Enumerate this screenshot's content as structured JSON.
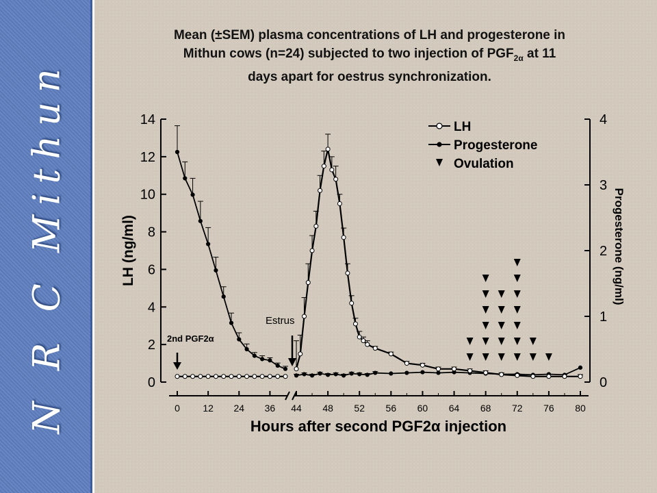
{
  "sidebar": {
    "text": "N R C Mithun"
  },
  "slide": {
    "title_line1": "Mean (±SEM) plasma concentrations of LH and progesterone in",
    "title_line2_pre": "Mithun cows (n=24) subjected to two injection of PGF",
    "title_line2_sub": "2α",
    "title_line2_post": " at 11",
    "title_line3": "days apart for oestrus synchronization."
  },
  "chart_data": {
    "type": "line",
    "xlabel": "Hours after second PGF2α injection",
    "ylabel_left": "LH (ng/ml)",
    "ylabel_right": "Progesterone (ng/ml)",
    "ylim_left": [
      0,
      14
    ],
    "ylim_right": [
      0,
      4
    ],
    "left_ticks": [
      0,
      2,
      4,
      6,
      8,
      10,
      12,
      14
    ],
    "right_ticks": [
      0,
      1,
      2,
      3,
      4
    ],
    "x_ticks": [
      "0",
      "12",
      "24",
      "36",
      "44",
      "48",
      "52",
      "56",
      "60",
      "64",
      "68",
      "72",
      "76",
      "80"
    ],
    "legend": {
      "position": "top-right",
      "entries": [
        {
          "label": "LH",
          "marker": "open-circle"
        },
        {
          "label": "Progesterone",
          "marker": "filled-circle"
        },
        {
          "label": "Ovulation",
          "marker": "filled-triangle-down"
        }
      ]
    },
    "annotations": [
      {
        "text": "2nd PGF2α",
        "x": 0
      },
      {
        "text": "Estrus",
        "x": 44
      }
    ],
    "series": [
      {
        "name": "Progesterone",
        "axis": "right",
        "x": [
          0,
          3,
          6,
          9,
          12,
          15,
          18,
          21,
          24,
          27,
          30,
          33,
          36,
          39,
          42
        ],
        "y": [
          3.5,
          3.1,
          2.85,
          2.45,
          2.1,
          1.7,
          1.3,
          0.9,
          0.65,
          0.5,
          0.4,
          0.35,
          0.33,
          0.25,
          0.2
        ],
        "err": [
          0.4,
          0.25,
          0.25,
          0.3,
          0.25,
          0.2,
          0.15,
          0.15,
          0.1,
          0.08,
          0.05,
          0.05,
          0.04,
          0.04,
          0.04
        ]
      },
      {
        "name": "Progesterone",
        "axis": "right",
        "x": [
          44,
          45,
          46,
          47,
          48,
          49,
          50,
          51,
          52,
          53,
          54,
          56,
          58,
          60,
          62,
          64,
          66,
          68,
          70,
          72,
          74,
          76,
          78,
          80
        ],
        "y": [
          0.1,
          0.12,
          0.1,
          0.13,
          0.11,
          0.12,
          0.1,
          0.13,
          0.12,
          0.11,
          0.14,
          0.13,
          0.14,
          0.15,
          0.14,
          0.15,
          0.14,
          0.13,
          0.12,
          0.12,
          0.11,
          0.12,
          0.11,
          0.22
        ],
        "err": [
          0.02,
          0.02,
          0.02,
          0.02,
          0.02,
          0.02,
          0.02,
          0.02,
          0.02,
          0.02,
          0.02,
          0,
          0,
          0,
          0,
          0,
          0,
          0,
          0,
          0,
          0,
          0,
          0,
          0
        ]
      },
      {
        "name": "LH",
        "axis": "left",
        "x": [
          0,
          3,
          6,
          9,
          12,
          15,
          18,
          21,
          24,
          27,
          30,
          33,
          36,
          39,
          42
        ],
        "y": [
          0.3,
          0.3,
          0.3,
          0.3,
          0.3,
          0.3,
          0.3,
          0.3,
          0.3,
          0.3,
          0.3,
          0.3,
          0.3,
          0.3,
          0.3
        ],
        "err": []
      },
      {
        "name": "LH",
        "axis": "left",
        "x": [
          44,
          44.5,
          45,
          45.5,
          46,
          46.5,
          47,
          47.5,
          48,
          48.5,
          49,
          49.5,
          50,
          50.5,
          51,
          51.5,
          52,
          52.5,
          53,
          54,
          56,
          58,
          60,
          62,
          64,
          66,
          68,
          70,
          72,
          74,
          76,
          78,
          80
        ],
        "y": [
          0.7,
          1.5,
          3.5,
          5.3,
          7.0,
          8.3,
          10.2,
          11.5,
          12.4,
          11.3,
          10.8,
          9.5,
          7.7,
          5.8,
          4.2,
          3.1,
          2.4,
          2.2,
          2.0,
          1.8,
          1.5,
          1.0,
          0.9,
          0.7,
          0.7,
          0.6,
          0.5,
          0.4,
          0.35,
          0.3,
          0.3,
          0.3,
          0.3
        ],
        "err": [
          1.5,
          1.0,
          1.0,
          1.0,
          0.8,
          0.8,
          0.8,
          0.8,
          0.8,
          0.7,
          0.7,
          0.5,
          0.5,
          0.5,
          0.4,
          0.3,
          0.3,
          0.2,
          0.2,
          0.1,
          0.1,
          0.1,
          0.1,
          0.1,
          0.1,
          0.1,
          0.1,
          0.1,
          0.1,
          0.1,
          0.1,
          0.1,
          0.1
        ]
      }
    ],
    "ovulation_counts": {
      "66": 2,
      "68": 6,
      "70": 5,
      "72": 7,
      "74": 2,
      "76": 1
    }
  }
}
